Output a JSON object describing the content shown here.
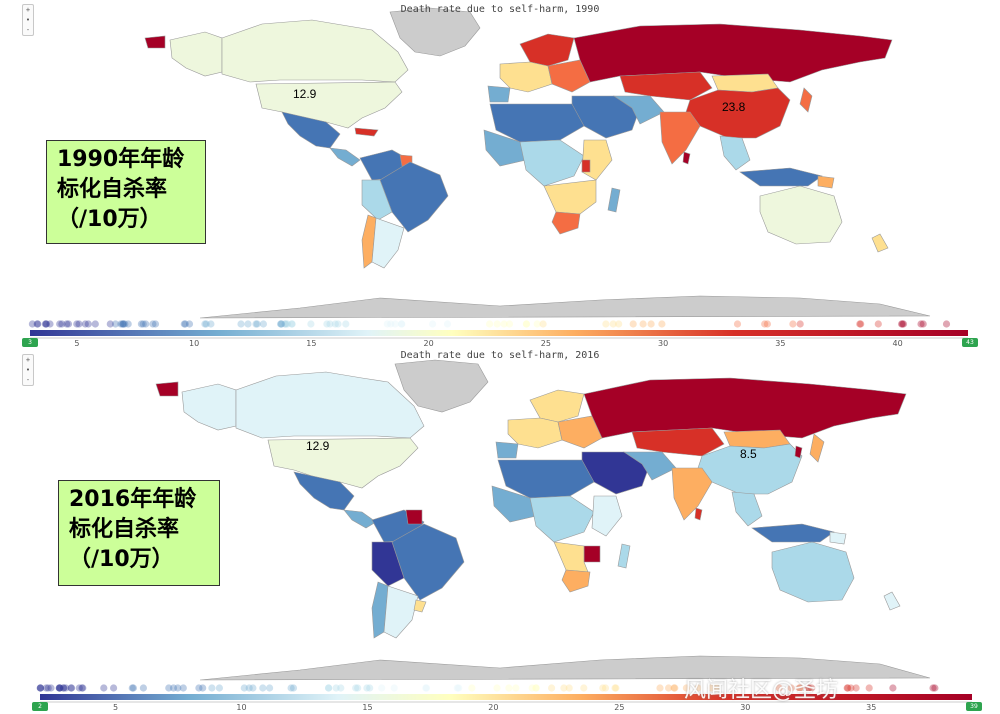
{
  "maps": [
    {
      "title": "Death rate due to self-harm, 1990",
      "label_lines": [
        "1990年年龄",
        "标化自杀率",
        "（/10万）"
      ],
      "annotations": [
        "12.9",
        "23.8"
      ],
      "scale": {
        "min": "3",
        "max": "43",
        "ticks": [
          "5",
          "10",
          "15",
          "20",
          "25",
          "30",
          "35",
          "40"
        ],
        "min_val": 3,
        "max_val": 43,
        "tick_vals": [
          5,
          10,
          15,
          20,
          25,
          30,
          35,
          40
        ]
      },
      "highlights": {
        "usa": "12.9",
        "china": "23.8"
      }
    },
    {
      "title": "Death rate due to self-harm, 2016",
      "label_lines": [
        "2016年年龄",
        "标化自杀率",
        "（/10万）"
      ],
      "annotations": [
        "12.9",
        "8.5"
      ],
      "scale": {
        "min": "2",
        "max": "39",
        "ticks": [
          "5",
          "10",
          "15",
          "20",
          "25",
          "30",
          "35"
        ],
        "min_val": 2,
        "max_val": 39,
        "tick_vals": [
          5,
          10,
          15,
          20,
          25,
          30,
          35
        ]
      },
      "highlights": {
        "usa": "12.9",
        "china": "8.5"
      }
    }
  ],
  "zoom_controls": [
    "+",
    "•",
    "-"
  ],
  "watermark": "风闻社区@圣坊",
  "colors": {
    "ocean": "#ffffff",
    "no_data": "#cccccc",
    "label_bg": "#ccff99",
    "scale_low": "#313695",
    "scale_mid": "#ffffbf",
    "scale_high": "#a50026",
    "endcap": "#2ea44f"
  }
}
